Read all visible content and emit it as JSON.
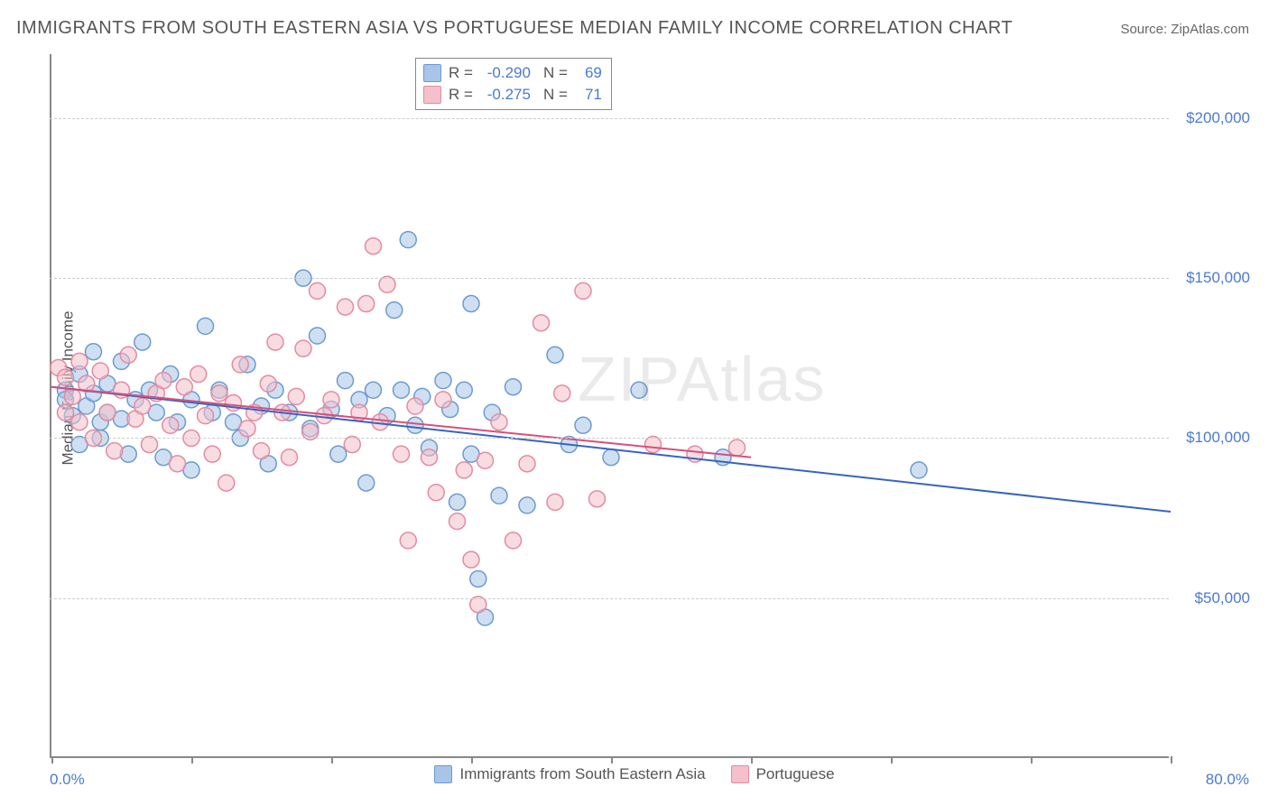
{
  "title": "IMMIGRANTS FROM SOUTH EASTERN ASIA VS PORTUGUESE MEDIAN FAMILY INCOME CORRELATION CHART",
  "source_label": "Source: ZipAtlas.com",
  "ylabel": "Median Family Income",
  "watermark": "ZIPAtlas",
  "chart": {
    "type": "scatter",
    "background_color": "#ffffff",
    "grid_color": "#cccccc",
    "axis_color": "#888888",
    "label_color": "#555555",
    "value_color": "#4a7bd0",
    "title_fontsize": 20,
    "label_fontsize": 17,
    "xlim": [
      0,
      80
    ],
    "ylim": [
      0,
      220000
    ],
    "x_tick_positions": [
      0,
      10,
      20,
      30,
      40,
      50,
      60,
      70,
      80
    ],
    "x_tick_labels_shown": {
      "0": "0.0%",
      "80": "80.0%"
    },
    "y_gridlines": [
      50000,
      100000,
      150000,
      200000
    ],
    "y_tick_labels": {
      "50000": "$50,000",
      "100000": "$100,000",
      "150000": "$150,000",
      "200000": "$200,000"
    },
    "marker_radius": 9,
    "marker_opacity": 0.55,
    "line_width": 2,
    "series": [
      {
        "name": "Immigrants from South Eastern Asia",
        "color_fill": "#a8c5e8",
        "color_stroke": "#6b9bd1",
        "R": "-0.290",
        "N": "69",
        "trend": {
          "x1": 0,
          "y1": 116000,
          "x2": 80,
          "y2": 77000,
          "color": "#3864c0"
        },
        "points": [
          [
            1,
            115000
          ],
          [
            1,
            112000
          ],
          [
            1.5,
            107000
          ],
          [
            2,
            98000
          ],
          [
            2,
            120000
          ],
          [
            2.5,
            110000
          ],
          [
            3,
            127000
          ],
          [
            3,
            114000
          ],
          [
            3.5,
            105000
          ],
          [
            3.5,
            100000
          ],
          [
            4,
            117000
          ],
          [
            4,
            108000
          ],
          [
            5,
            124000
          ],
          [
            5,
            106000
          ],
          [
            5.5,
            95000
          ],
          [
            6,
            112000
          ],
          [
            6.5,
            130000
          ],
          [
            7,
            115000
          ],
          [
            7.5,
            108000
          ],
          [
            8,
            94000
          ],
          [
            8.5,
            120000
          ],
          [
            9,
            105000
          ],
          [
            10,
            112000
          ],
          [
            10,
            90000
          ],
          [
            11,
            135000
          ],
          [
            11.5,
            108000
          ],
          [
            12,
            115000
          ],
          [
            13,
            105000
          ],
          [
            13.5,
            100000
          ],
          [
            14,
            123000
          ],
          [
            15,
            110000
          ],
          [
            15.5,
            92000
          ],
          [
            16,
            115000
          ],
          [
            17,
            108000
          ],
          [
            18,
            150000
          ],
          [
            18.5,
            103000
          ],
          [
            19,
            132000
          ],
          [
            20,
            109000
          ],
          [
            20.5,
            95000
          ],
          [
            21,
            118000
          ],
          [
            22,
            112000
          ],
          [
            22.5,
            86000
          ],
          [
            23,
            115000
          ],
          [
            24,
            107000
          ],
          [
            24.5,
            140000
          ],
          [
            25,
            115000
          ],
          [
            25.5,
            162000
          ],
          [
            26,
            104000
          ],
          [
            26.5,
            113000
          ],
          [
            27,
            97000
          ],
          [
            28,
            118000
          ],
          [
            28.5,
            109000
          ],
          [
            29,
            80000
          ],
          [
            29.5,
            115000
          ],
          [
            30,
            142000
          ],
          [
            30,
            95000
          ],
          [
            30.5,
            56000
          ],
          [
            31,
            44000
          ],
          [
            31.5,
            108000
          ],
          [
            32,
            82000
          ],
          [
            33,
            116000
          ],
          [
            34,
            79000
          ],
          [
            36,
            126000
          ],
          [
            37,
            98000
          ],
          [
            38,
            104000
          ],
          [
            40,
            94000
          ],
          [
            42,
            115000
          ],
          [
            48,
            94000
          ],
          [
            62,
            90000
          ]
        ]
      },
      {
        "name": "Portuguese",
        "color_fill": "#f4c0cb",
        "color_stroke": "#e48ba0",
        "R": "-0.275",
        "N": "71",
        "trend": {
          "x1": 0,
          "y1": 116000,
          "x2": 50,
          "y2": 94000,
          "color": "#d94f7a"
        },
        "points": [
          [
            0.5,
            122000
          ],
          [
            1,
            119000
          ],
          [
            1,
            108000
          ],
          [
            1.5,
            113000
          ],
          [
            2,
            124000
          ],
          [
            2,
            105000
          ],
          [
            2.5,
            117000
          ],
          [
            3,
            100000
          ],
          [
            3.5,
            121000
          ],
          [
            4,
            108000
          ],
          [
            4.5,
            96000
          ],
          [
            5,
            115000
          ],
          [
            5.5,
            126000
          ],
          [
            6,
            106000
          ],
          [
            6.5,
            110000
          ],
          [
            7,
            98000
          ],
          [
            7.5,
            114000
          ],
          [
            8,
            118000
          ],
          [
            8.5,
            104000
          ],
          [
            9,
            92000
          ],
          [
            9.5,
            116000
          ],
          [
            10,
            100000
          ],
          [
            10.5,
            120000
          ],
          [
            11,
            107000
          ],
          [
            11.5,
            95000
          ],
          [
            12,
            114000
          ],
          [
            12.5,
            86000
          ],
          [
            13,
            111000
          ],
          [
            13.5,
            123000
          ],
          [
            14,
            103000
          ],
          [
            14.5,
            108000
          ],
          [
            15,
            96000
          ],
          [
            15.5,
            117000
          ],
          [
            16,
            130000
          ],
          [
            16.5,
            108000
          ],
          [
            17,
            94000
          ],
          [
            17.5,
            113000
          ],
          [
            18,
            128000
          ],
          [
            18.5,
            102000
          ],
          [
            19,
            146000
          ],
          [
            19.5,
            107000
          ],
          [
            20,
            112000
          ],
          [
            21,
            141000
          ],
          [
            21.5,
            98000
          ],
          [
            22,
            108000
          ],
          [
            22.5,
            142000
          ],
          [
            23,
            160000
          ],
          [
            23.5,
            105000
          ],
          [
            24,
            148000
          ],
          [
            25,
            95000
          ],
          [
            25.5,
            68000
          ],
          [
            26,
            110000
          ],
          [
            27,
            94000
          ],
          [
            27.5,
            83000
          ],
          [
            28,
            112000
          ],
          [
            29,
            74000
          ],
          [
            29.5,
            90000
          ],
          [
            30,
            62000
          ],
          [
            30.5,
            48000
          ],
          [
            31,
            93000
          ],
          [
            32,
            105000
          ],
          [
            33,
            68000
          ],
          [
            34,
            92000
          ],
          [
            35,
            136000
          ],
          [
            36,
            80000
          ],
          [
            36.5,
            114000
          ],
          [
            38,
            146000
          ],
          [
            39,
            81000
          ],
          [
            43,
            98000
          ],
          [
            46,
            95000
          ],
          [
            49,
            97000
          ]
        ]
      }
    ],
    "bottom_legend": [
      {
        "label": "Immigrants from South Eastern Asia",
        "fill": "#a8c5e8",
        "stroke": "#6b9bd1"
      },
      {
        "label": "Portuguese",
        "fill": "#f4c0cb",
        "stroke": "#e48ba0"
      }
    ]
  }
}
